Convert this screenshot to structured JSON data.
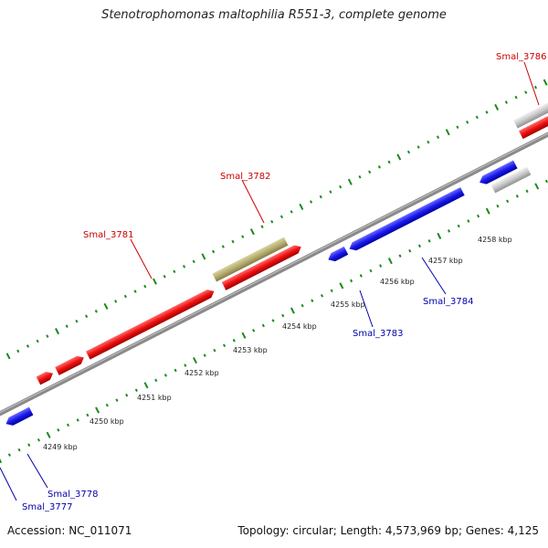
{
  "title": "Stenotrophomonas maltophilia R551-3, complete genome",
  "footer": {
    "accession": "Accession: NC_011071",
    "summary": "Topology: circular; Length: 4,573,969 bp; Genes: 4,125"
  },
  "colors": {
    "forward_gene": "#ee1111",
    "reverse_gene": "#1a1aee",
    "forward_label": "#cc0000",
    "reverse_label": "#0000aa",
    "highlight_gene": "#b6ae70",
    "other_gene": "#c8c8c8",
    "ticks": "#1c8a1c",
    "backbone": "#8a8a8a"
  },
  "scale": {
    "labels": [
      "4249 kbp",
      "4250 kbp",
      "4251 kbp",
      "4252 kbp",
      "4253 kbp",
      "4254 kbp",
      "4255 kbp",
      "4256 kbp",
      "4257 kbp",
      "4258 kbp"
    ]
  },
  "gene_labels": {
    "forward": [
      "Smal_3781",
      "Smal_3782",
      "Smal_3786"
    ],
    "reverse": [
      "Smal_3777",
      "Smal_3778",
      "Smal_3783",
      "Smal_3784"
    ]
  }
}
